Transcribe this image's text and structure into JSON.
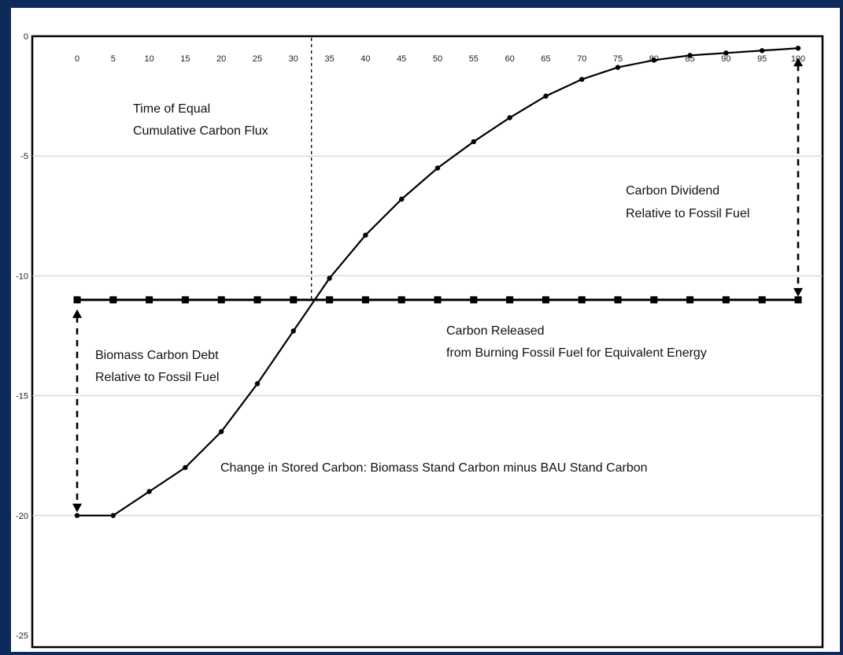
{
  "chart_data": {
    "type": "line",
    "title": "",
    "xlabel": "",
    "ylabel": "",
    "x": [
      0,
      5,
      10,
      15,
      20,
      25,
      30,
      35,
      40,
      45,
      50,
      55,
      60,
      65,
      70,
      75,
      80,
      85,
      90,
      95,
      100
    ],
    "x_ticks": [
      0,
      5,
      10,
      15,
      20,
      25,
      30,
      35,
      40,
      45,
      50,
      55,
      60,
      65,
      70,
      75,
      80,
      85,
      90,
      95,
      100
    ],
    "y_ticks": [
      0,
      -5,
      -10,
      -15,
      -20,
      -25
    ],
    "xlim": [
      0,
      100
    ],
    "ylim": [
      -25,
      0
    ],
    "x_axis_position": "top",
    "grid": "horizontal",
    "series": [
      {
        "label": "Change in Stored Carbon: Biomass Stand Carbon minus BAU Stand Carbon",
        "marker": "diamond",
        "color": "#000000",
        "values": [
          -20,
          -20,
          -19,
          -18,
          -16.5,
          -14.5,
          -12.3,
          -10.1,
          -8.3,
          -6.8,
          -5.5,
          -4.4,
          -3.4,
          -2.5,
          -1.8,
          -1.3,
          -1.0,
          -0.8,
          -0.7,
          -0.6,
          -0.5
        ]
      },
      {
        "label": "Carbon Released from Burning Fossil Fuel for Equivalent Energy",
        "marker": "square",
        "color": "#000000",
        "values": [
          -11,
          -11,
          -11,
          -11,
          -11,
          -11,
          -11,
          -11,
          -11,
          -11,
          -11,
          -11,
          -11,
          -11,
          -11,
          -11,
          -11,
          -11,
          -11,
          -11,
          -11
        ]
      }
    ],
    "crossover_x": 32.5,
    "annotations": {
      "equal_flux": [
        "Time of Equal",
        "Cumulative Carbon Flux"
      ],
      "dividend": [
        "Carbon Dividend",
        "Relative to Fossil Fuel"
      ],
      "fossil": [
        "Carbon Released",
        "from Burning  Fossil Fuel for Equivalent Energy"
      ],
      "debt": [
        "Biomass Carbon Debt",
        "Relative to Fossil Fuel"
      ],
      "stored": "Change in Stored Carbon: Biomass Stand Carbon minus BAU Stand Carbon"
    }
  }
}
